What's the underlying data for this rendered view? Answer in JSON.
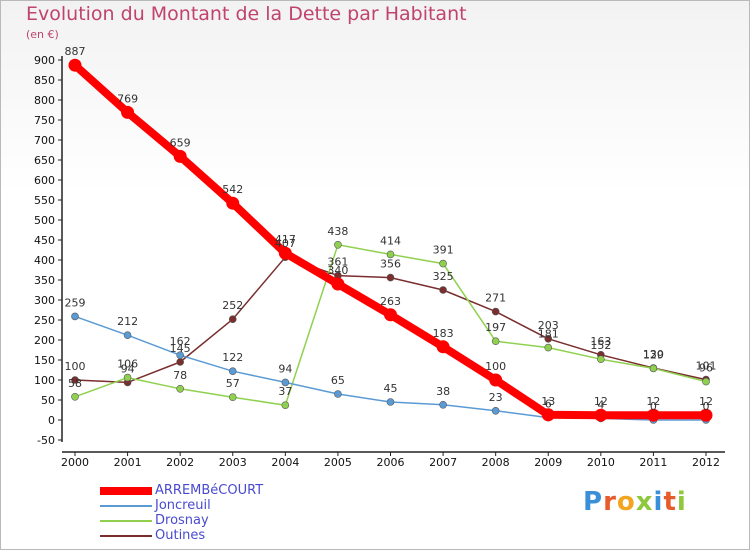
{
  "title": "Evolution du Montant de la Dette par Habitant",
  "unit_label": "(en €)",
  "logo": "Proxiti",
  "chart_data": {
    "type": "line",
    "x": [
      "2000",
      "2001",
      "2002",
      "2003",
      "2004",
      "2005",
      "2006",
      "2007",
      "2008",
      "2009",
      "2010",
      "2011",
      "2012"
    ],
    "ylim": [
      -50,
      900
    ],
    "yticks": [
      -50,
      0,
      50,
      100,
      150,
      200,
      250,
      300,
      350,
      400,
      450,
      500,
      550,
      600,
      650,
      700,
      750,
      800,
      850,
      900
    ],
    "grid": false,
    "legend_position": "bottom-left",
    "series": [
      {
        "name": "ARREMBéCOURT",
        "color": "#ff0000",
        "values": [
          887,
          769,
          659,
          542,
          417,
          340,
          263,
          183,
          100,
          13,
          12,
          12,
          12
        ],
        "labels": [
          "887",
          "769",
          "659",
          "542",
          "417",
          "340",
          "263",
          "183",
          "100",
          "13",
          "12",
          "12",
          "12"
        ]
      },
      {
        "name": "Joncreuil",
        "color": "#5b9bd5",
        "values": [
          259,
          212,
          162,
          122,
          94,
          65,
          45,
          38,
          23,
          6,
          4,
          0,
          0
        ],
        "labels": [
          "259",
          "212",
          "162",
          "122",
          "94",
          "65",
          "45",
          "38",
          "23",
          "6",
          "4",
          "0",
          "0"
        ]
      },
      {
        "name": "Drosnay",
        "color": "#8fd14f",
        "values": [
          58,
          106,
          78,
          57,
          37,
          438,
          414,
          391,
          197,
          181,
          152,
          129,
          96
        ],
        "labels": [
          "58",
          "106",
          "78",
          "57",
          "37",
          "438",
          "414",
          "391",
          "197",
          "181",
          "152",
          "129",
          "96"
        ]
      },
      {
        "name": "Outines",
        "color": "#7a2e2e",
        "values": [
          100,
          94,
          145,
          252,
          407,
          361,
          356,
          325,
          271,
          203,
          163,
          130,
          101
        ],
        "labels": [
          "100",
          "94",
          "145",
          "252",
          "407",
          "361",
          "356",
          "325",
          "271",
          "203",
          "163",
          "130",
          "101"
        ]
      }
    ]
  },
  "colors": {
    "title": "#c0436f",
    "legend_text": "#4a4ad0",
    "axis": "#222222"
  }
}
